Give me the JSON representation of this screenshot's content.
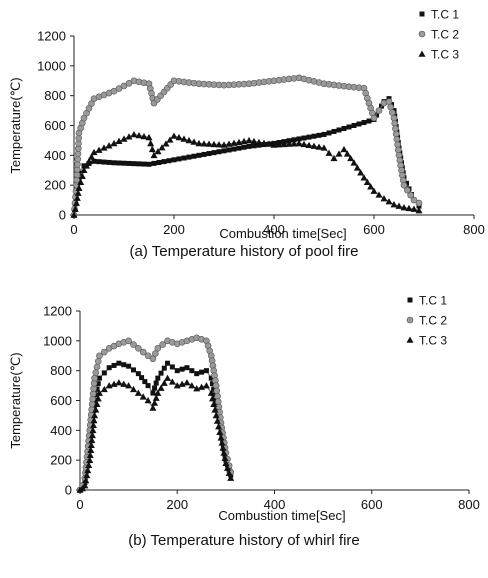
{
  "chart_data": [
    {
      "type": "scatter",
      "caption": "(a) Temperature history of pool fire",
      "xlabel": "Combustion time[Sec]",
      "ylabel": "Temperature(℃)",
      "xlim": [
        0,
        800
      ],
      "ylim": [
        0,
        1200
      ],
      "xticks": [
        "0",
        "200",
        "400",
        "600",
        "800"
      ],
      "yticks": [
        "0",
        "200",
        "400",
        "600",
        "800",
        "1000",
        "1200"
      ],
      "grid": false,
      "legend_position": "top-right",
      "series": [
        {
          "name": "T.C 1",
          "marker": "square",
          "color": "#111111",
          "x": [
            0,
            5,
            10,
            20,
            40,
            80,
            150,
            200,
            250,
            300,
            350,
            400,
            450,
            500,
            550,
            580,
            600,
            610,
            620,
            630,
            640,
            650,
            660,
            680,
            690
          ],
          "y": [
            0,
            150,
            280,
            330,
            360,
            350,
            340,
            370,
            400,
            430,
            460,
            480,
            510,
            540,
            590,
            620,
            640,
            700,
            760,
            780,
            700,
            450,
            250,
            100,
            60
          ]
        },
        {
          "name": "T.C 2",
          "marker": "circle",
          "color": "#9a9a9a",
          "x": [
            0,
            5,
            10,
            20,
            40,
            80,
            120,
            150,
            160,
            200,
            250,
            300,
            350,
            400,
            450,
            500,
            550,
            580,
            600,
            610,
            620,
            630,
            640,
            650,
            660,
            680,
            690
          ],
          "y": [
            0,
            200,
            550,
            650,
            780,
            830,
            900,
            880,
            750,
            900,
            880,
            870,
            880,
            900,
            920,
            880,
            860,
            850,
            650,
            700,
            750,
            760,
            650,
            400,
            200,
            100,
            80
          ]
        },
        {
          "name": "T.C 3",
          "marker": "triangle",
          "color": "#111111",
          "x": [
            0,
            5,
            10,
            20,
            40,
            80,
            120,
            150,
            160,
            200,
            250,
            300,
            350,
            400,
            450,
            500,
            520,
            540,
            560,
            580,
            600,
            620,
            640,
            660,
            680,
            690
          ],
          "y": [
            0,
            80,
            180,
            300,
            420,
            480,
            540,
            520,
            400,
            530,
            480,
            470,
            500,
            470,
            480,
            450,
            380,
            440,
            350,
            250,
            160,
            110,
            70,
            50,
            40,
            30
          ]
        }
      ]
    },
    {
      "type": "scatter",
      "caption": "(b) Temperature history of whirl fire",
      "xlabel": "Combustion time[Sec]",
      "ylabel": "Temperature(℃)",
      "xlim": [
        0,
        800
      ],
      "ylim": [
        0,
        1200
      ],
      "xticks": [
        "0",
        "200",
        "400",
        "600",
        "800"
      ],
      "yticks": [
        "0",
        "200",
        "400",
        "600",
        "800",
        "1000",
        "1200"
      ],
      "grid": false,
      "legend_position": "top-right",
      "series": [
        {
          "name": "T.C 1",
          "marker": "square",
          "color": "#111111",
          "x": [
            0,
            5,
            10,
            20,
            30,
            40,
            60,
            80,
            100,
            120,
            140,
            150,
            160,
            180,
            200,
            220,
            240,
            260,
            270,
            280,
            290,
            300,
            310
          ],
          "y": [
            0,
            20,
            50,
            300,
            600,
            750,
            820,
            850,
            830,
            780,
            700,
            650,
            750,
            850,
            800,
            820,
            780,
            800,
            750,
            600,
            400,
            200,
            100
          ]
        },
        {
          "name": "T.C 2",
          "marker": "circle",
          "color": "#9a9a9a",
          "x": [
            0,
            5,
            10,
            20,
            30,
            40,
            60,
            80,
            100,
            120,
            140,
            150,
            160,
            180,
            200,
            220,
            240,
            260,
            270,
            280,
            290,
            300,
            310
          ],
          "y": [
            0,
            30,
            80,
            400,
            750,
            900,
            950,
            980,
            1000,
            950,
            900,
            880,
            950,
            1000,
            980,
            1000,
            1020,
            1000,
            900,
            700,
            450,
            250,
            120
          ]
        },
        {
          "name": "T.C 3",
          "marker": "triangle",
          "color": "#111111",
          "x": [
            0,
            5,
            10,
            20,
            30,
            40,
            60,
            80,
            100,
            120,
            140,
            150,
            160,
            180,
            200,
            220,
            240,
            260,
            270,
            280,
            290,
            300,
            310
          ],
          "y": [
            0,
            10,
            30,
            200,
            500,
            650,
            700,
            720,
            700,
            650,
            600,
            550,
            650,
            750,
            700,
            720,
            680,
            700,
            650,
            500,
            350,
            180,
            80
          ]
        }
      ]
    }
  ]
}
